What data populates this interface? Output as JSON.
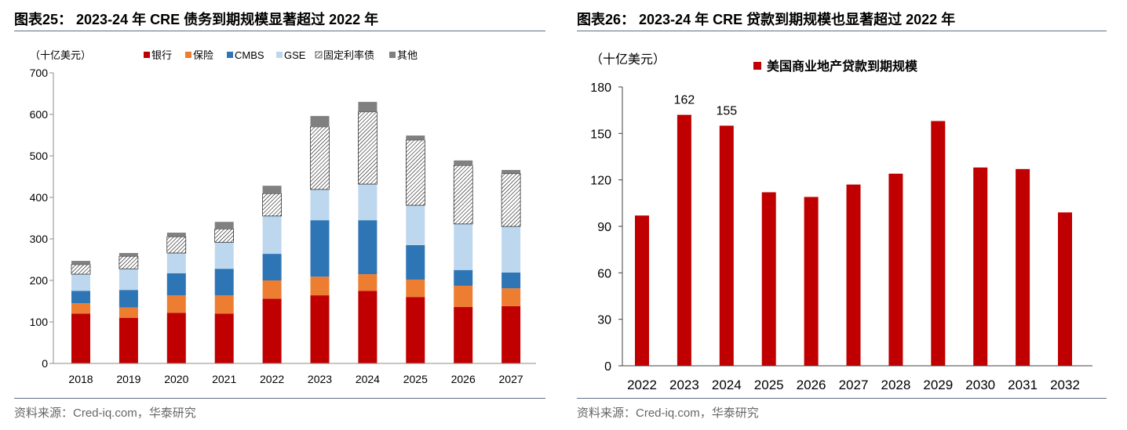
{
  "chart_data": [
    {
      "type": "bar",
      "stacked": true,
      "title": "图表25： 2023-24 年 CRE 债务到期规模显著超过 2022 年",
      "ylabel": "（十亿美元）",
      "xlabel": "",
      "ylim": [
        0,
        700
      ],
      "yticks": [
        0,
        100,
        200,
        300,
        400,
        500,
        600,
        700
      ],
      "categories": [
        "2018",
        "2019",
        "2020",
        "2021",
        "2022",
        "2023",
        "2024",
        "2025",
        "2026",
        "2027"
      ],
      "series": [
        {
          "name": "银行",
          "color": "#C00000",
          "values": [
            120,
            110,
            122,
            120,
            156,
            164,
            175,
            160,
            136,
            138
          ]
        },
        {
          "name": "保险",
          "color": "#ED7D31",
          "values": [
            25,
            25,
            42,
            44,
            44,
            45,
            40,
            42,
            51,
            43
          ]
        },
        {
          "name": "CMBS",
          "color": "#2E75B6",
          "values": [
            30,
            42,
            53,
            64,
            64,
            136,
            130,
            83,
            38,
            38
          ]
        },
        {
          "name": "GSE",
          "color": "#BDD7EE",
          "values": [
            40,
            51,
            49,
            64,
            91,
            74,
            87,
            96,
            111,
            111
          ]
        },
        {
          "name": "固定利率债",
          "color": "#FFFFFF",
          "hatch_color": "#000000",
          "values": [
            23,
            30,
            39,
            32,
            54,
            151,
            174,
            157,
            141,
            127
          ]
        },
        {
          "name": "其他",
          "color": "#808080",
          "values": [
            9,
            8,
            10,
            17,
            19,
            26,
            24,
            11,
            12,
            9
          ]
        }
      ],
      "legend": "top",
      "grid": false,
      "source": "资料来源：Cred-iq.com，华泰研究"
    },
    {
      "type": "bar",
      "stacked": false,
      "title": "图表26： 2023-24 年 CRE 贷款到期规模也显著超过 2022 年",
      "ylabel": "（十亿美元）",
      "xlabel": "",
      "ylim": [
        0,
        180
      ],
      "yticks": [
        0,
        30,
        60,
        90,
        120,
        150,
        180
      ],
      "categories": [
        "2022",
        "2023",
        "2024",
        "2025",
        "2026",
        "2027",
        "2028",
        "2029",
        "2030",
        "2031",
        "2032"
      ],
      "series": [
        {
          "name": "美国商业地产贷款到期规模",
          "color": "#C00000",
          "values": [
            97,
            162,
            155,
            112,
            109,
            117,
            124,
            158,
            128,
            127,
            99
          ]
        }
      ],
      "data_labels": [
        {
          "index": 1,
          "text": "162"
        },
        {
          "index": 2,
          "text": "155"
        }
      ],
      "legend": "top",
      "grid": false,
      "source": "资料来源：Cred-iq.com，华泰研究"
    }
  ]
}
